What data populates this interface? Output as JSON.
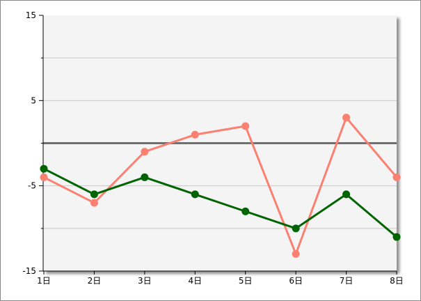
{
  "chart_data": {
    "type": "line",
    "categories": [
      "1日",
      "2日",
      "3日",
      "4日",
      "5日",
      "6日",
      "7日",
      "8日"
    ],
    "series": [
      {
        "color": "#fa8072",
        "values": [
          -4,
          -7,
          -1,
          1,
          2,
          -13,
          3,
          -4
        ]
      },
      {
        "color": "#006400",
        "values": [
          -3,
          -6,
          -4,
          -6,
          -8,
          -10,
          -6,
          -11
        ]
      }
    ],
    "ylim": [
      -15,
      15
    ],
    "yticks_labeled": [
      "15",
      "5",
      "-5",
      "-15"
    ],
    "ytick_values_labeled": [
      15,
      5,
      -5,
      -15
    ],
    "ytick_values_minor": [
      10,
      0,
      -10
    ],
    "grid": true,
    "baseline": 0,
    "colors": {
      "plot_background": "#f4f4f4",
      "gridline": "#c8c8c8",
      "baseline": "#707070",
      "axis": "#000000"
    }
  }
}
